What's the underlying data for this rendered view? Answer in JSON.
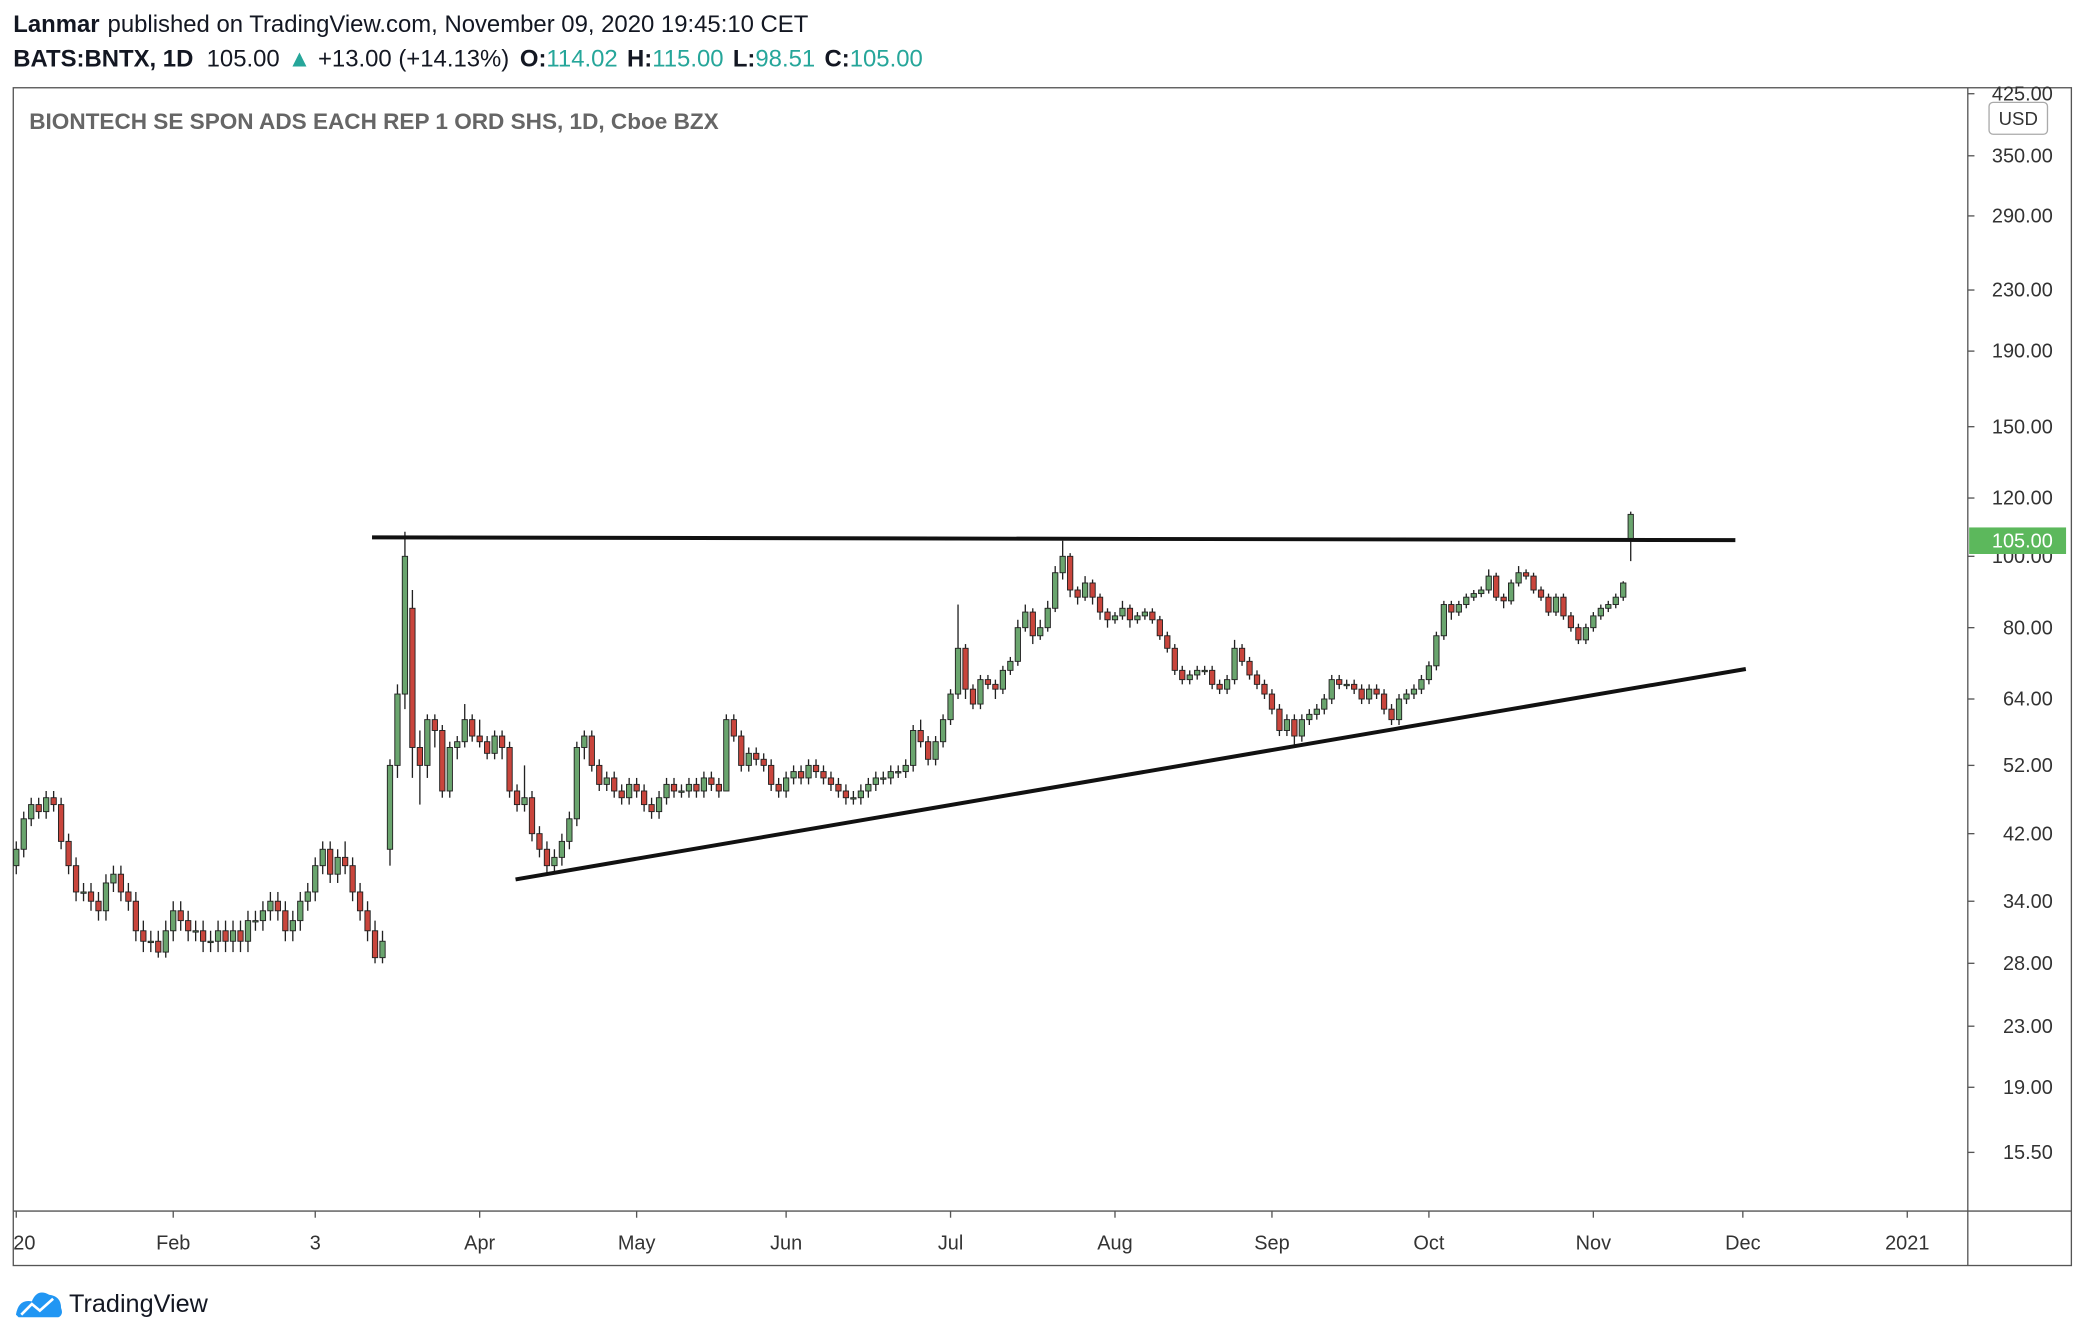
{
  "header": {
    "author": "Lanmar",
    "published": "published on TradingView.com, November 09, 2020 19:45:10 CET",
    "symbol": "BATS:BNTX, 1D",
    "price": "105.00",
    "arrow": "▲",
    "change": "+13.00 (+14.13%)",
    "ohlc_labels": [
      "O:",
      "H:",
      "L:",
      "C:"
    ],
    "ohlc_values": [
      "114.02",
      "115.00",
      "98.51",
      "105.00"
    ]
  },
  "chart_data": {
    "type": "candlestick",
    "title": "BIONTECH SE SPON ADS EACH REP 1 ORD SHS, 1D, Cboe BZX",
    "currency": "USD",
    "log_scale": true,
    "up_color": "#6aa56e",
    "down_color": "#c9453c",
    "last_price_label": "105.00",
    "last_price_color": "#5cb85c",
    "xlim": [
      -0.4,
      261.1
    ],
    "ylim": [
      12.9,
      433
    ],
    "xticks": [
      {
        "value": 0,
        "label": "20"
      },
      {
        "value": 21,
        "label": "Feb"
      },
      {
        "value": 40,
        "label": "3"
      },
      {
        "value": 62,
        "label": "Apr"
      },
      {
        "value": 83,
        "label": "May"
      },
      {
        "value": 103,
        "label": "Jun"
      },
      {
        "value": 125,
        "label": "Jul"
      },
      {
        "value": 147,
        "label": "Aug"
      },
      {
        "value": 168,
        "label": "Sep"
      },
      {
        "value": 189,
        "label": "Oct"
      },
      {
        "value": 211,
        "label": "Nov"
      },
      {
        "value": 231,
        "label": "Dec"
      },
      {
        "value": 253,
        "label": "2021"
      }
    ],
    "yticks": [
      {
        "value": 425,
        "label": "425.00"
      },
      {
        "value": 350,
        "label": "350.00"
      },
      {
        "value": 290,
        "label": "290.00"
      },
      {
        "value": 230,
        "label": "230.00"
      },
      {
        "value": 190,
        "label": "190.00"
      },
      {
        "value": 150,
        "label": "150.00"
      },
      {
        "value": 120,
        "label": "120.00"
      },
      {
        "value": 100,
        "label": "100.00"
      },
      {
        "value": 80,
        "label": "80.00"
      },
      {
        "value": 64,
        "label": "64.00"
      },
      {
        "value": 52,
        "label": "52.00"
      },
      {
        "value": 42,
        "label": "42.00"
      },
      {
        "value": 34,
        "label": "34.00"
      },
      {
        "value": 28,
        "label": "28.00"
      },
      {
        "value": 23,
        "label": "23.00"
      },
      {
        "value": 19,
        "label": "19.00"
      },
      {
        "value": 15.5,
        "label": "15.50"
      }
    ],
    "trendlines": [
      {
        "x": [
          47.6,
          230
        ],
        "y": [
          106.1,
          105.2
        ]
      },
      {
        "x": [
          66.8,
          231.4
        ],
        "y": [
          36.4,
          70.3
        ]
      }
    ],
    "ohlc": [
      [
        38,
        41,
        37,
        40
      ],
      [
        40,
        45,
        39,
        44
      ],
      [
        44,
        47,
        43,
        46
      ],
      [
        46,
        47,
        44,
        45
      ],
      [
        45,
        48,
        44,
        47
      ],
      [
        47,
        48,
        45,
        46
      ],
      [
        46,
        47,
        40,
        41
      ],
      [
        41,
        42,
        37,
        38
      ],
      [
        38,
        39,
        34,
        35
      ],
      [
        35,
        36,
        34,
        35
      ],
      [
        35,
        36,
        33,
        34
      ],
      [
        34,
        35,
        32,
        33
      ],
      [
        33,
        37,
        32,
        36
      ],
      [
        36,
        38,
        35,
        37
      ],
      [
        37,
        38,
        34,
        35
      ],
      [
        35,
        36,
        33,
        34
      ],
      [
        34,
        35,
        30,
        31
      ],
      [
        31,
        32,
        29,
        30
      ],
      [
        30,
        31,
        29,
        30
      ],
      [
        30,
        31,
        28.5,
        29
      ],
      [
        29,
        32,
        28.5,
        31
      ],
      [
        31,
        34,
        30,
        33
      ],
      [
        33,
        34,
        31,
        32
      ],
      [
        32,
        33,
        30,
        31
      ],
      [
        31,
        32,
        30,
        31
      ],
      [
        31,
        32,
        29,
        30
      ],
      [
        30,
        31,
        29,
        30
      ],
      [
        30,
        32,
        29,
        31
      ],
      [
        31,
        32,
        29,
        30
      ],
      [
        30,
        32,
        29,
        31
      ],
      [
        31,
        32,
        29,
        30
      ],
      [
        30,
        33,
        29,
        32
      ],
      [
        32,
        33,
        31,
        32
      ],
      [
        32,
        34,
        31,
        33
      ],
      [
        33,
        35,
        32,
        34
      ],
      [
        34,
        35,
        32,
        33
      ],
      [
        33,
        34,
        30,
        31
      ],
      [
        31,
        33,
        30,
        32
      ],
      [
        32,
        35,
        31,
        34
      ],
      [
        34,
        36,
        33,
        35
      ],
      [
        35,
        39,
        34,
        38
      ],
      [
        38,
        41,
        37,
        40
      ],
      [
        40,
        41,
        36,
        37
      ],
      [
        37,
        40,
        36,
        39
      ],
      [
        39,
        41,
        37,
        38
      ],
      [
        38,
        39,
        34,
        35
      ],
      [
        35,
        36,
        32,
        33
      ],
      [
        33,
        34,
        30,
        31
      ],
      [
        31,
        32,
        28,
        28.5
      ],
      [
        28.5,
        31,
        28,
        30
      ],
      [
        40,
        53,
        38,
        52
      ],
      [
        52,
        67,
        50,
        65
      ],
      [
        65,
        108,
        62,
        100
      ],
      [
        85,
        90,
        50,
        55
      ],
      [
        55,
        58,
        46,
        52
      ],
      [
        52,
        61,
        50,
        60
      ],
      [
        60,
        61,
        55,
        58
      ],
      [
        58,
        59,
        47,
        48
      ],
      [
        48,
        56,
        47,
        55
      ],
      [
        55,
        57,
        53,
        56
      ],
      [
        56,
        63,
        55,
        60
      ],
      [
        60,
        61,
        56,
        57
      ],
      [
        57,
        60,
        55,
        56
      ],
      [
        56,
        57,
        53,
        54
      ],
      [
        54,
        58,
        53,
        57
      ],
      [
        57,
        58,
        53,
        55
      ],
      [
        55,
        56,
        47,
        48
      ],
      [
        48,
        49,
        45,
        46
      ],
      [
        46,
        52,
        45,
        47
      ],
      [
        47,
        48,
        41,
        42
      ],
      [
        42,
        43,
        39,
        40
      ],
      [
        40,
        41,
        37,
        38
      ],
      [
        38,
        40,
        37,
        39
      ],
      [
        39,
        42,
        38,
        41
      ],
      [
        41,
        45,
        40,
        44
      ],
      [
        44,
        56,
        43,
        55
      ],
      [
        55,
        58,
        53,
        57
      ],
      [
        57,
        58,
        51,
        52
      ],
      [
        52,
        53,
        48,
        49
      ],
      [
        49,
        51,
        48,
        50
      ],
      [
        50,
        51,
        47,
        48
      ],
      [
        48,
        49,
        46,
        47
      ],
      [
        47,
        50,
        46,
        49
      ],
      [
        49,
        50,
        47,
        48
      ],
      [
        48,
        49,
        45,
        46
      ],
      [
        46,
        47,
        44,
        45
      ],
      [
        45,
        48,
        44,
        47
      ],
      [
        47,
        50,
        46,
        49
      ],
      [
        49,
        50,
        47,
        48
      ],
      [
        48,
        49,
        47,
        48
      ],
      [
        48,
        50,
        47,
        49
      ],
      [
        49,
        50,
        47,
        48
      ],
      [
        48,
        51,
        47,
        50
      ],
      [
        50,
        51,
        48,
        49
      ],
      [
        49,
        50,
        47,
        48
      ],
      [
        48,
        61,
        48,
        60
      ],
      [
        60,
        61,
        56,
        57
      ],
      [
        57,
        58,
        51,
        52
      ],
      [
        52,
        55,
        51,
        54
      ],
      [
        54,
        55,
        52,
        53
      ],
      [
        53,
        54,
        51,
        52
      ],
      [
        52,
        53,
        48,
        49
      ],
      [
        49,
        50,
        47,
        48
      ],
      [
        48,
        51,
        47,
        50
      ],
      [
        50,
        52,
        49,
        51
      ],
      [
        51,
        52,
        49,
        50
      ],
      [
        50,
        53,
        49,
        52
      ],
      [
        52,
        53,
        50,
        51
      ],
      [
        51,
        52,
        49,
        50
      ],
      [
        50,
        51,
        48,
        49
      ],
      [
        49,
        50,
        47,
        48
      ],
      [
        48,
        49,
        46,
        47
      ],
      [
        47,
        48,
        46,
        47
      ],
      [
        47,
        49,
        46,
        48
      ],
      [
        48,
        50,
        47,
        49
      ],
      [
        49,
        51,
        48,
        50
      ],
      [
        50,
        51,
        49,
        50
      ],
      [
        50,
        52,
        49,
        51
      ],
      [
        51,
        52,
        50,
        51
      ],
      [
        51,
        53,
        50,
        52
      ],
      [
        52,
        59,
        51,
        58
      ],
      [
        58,
        60,
        55,
        56
      ],
      [
        56,
        57,
        52,
        53
      ],
      [
        53,
        57,
        52,
        56
      ],
      [
        56,
        61,
        55,
        60
      ],
      [
        60,
        66,
        59,
        65
      ],
      [
        65,
        86,
        64,
        75
      ],
      [
        75,
        76,
        64,
        66
      ],
      [
        66,
        67,
        62,
        63
      ],
      [
        63,
        69,
        62,
        68
      ],
      [
        68,
        69,
        66,
        67
      ],
      [
        67,
        68,
        64,
        66
      ],
      [
        66,
        71,
        65,
        70
      ],
      [
        70,
        73,
        69,
        72
      ],
      [
        72,
        82,
        71,
        80
      ],
      [
        80,
        86,
        79,
        84
      ],
      [
        84,
        85,
        76,
        78
      ],
      [
        78,
        82,
        77,
        80
      ],
      [
        80,
        87,
        79,
        85
      ],
      [
        85,
        97,
        84,
        95
      ],
      [
        95,
        105,
        93,
        100
      ],
      [
        100,
        101,
        88,
        90
      ],
      [
        90,
        91,
        86,
        88
      ],
      [
        88,
        94,
        87,
        92
      ],
      [
        92,
        93,
        86,
        88
      ],
      [
        88,
        89,
        82,
        84
      ],
      [
        84,
        85,
        80,
        82
      ],
      [
        82,
        84,
        81,
        83
      ],
      [
        83,
        87,
        82,
        85
      ],
      [
        85,
        86,
        80,
        82
      ],
      [
        82,
        84,
        81,
        83
      ],
      [
        83,
        85,
        82,
        84
      ],
      [
        84,
        85,
        81,
        82
      ],
      [
        82,
        83,
        77,
        78
      ],
      [
        78,
        79,
        74,
        75
      ],
      [
        75,
        76,
        69,
        70
      ],
      [
        70,
        71,
        67,
        68
      ],
      [
        68,
        70,
        67,
        69
      ],
      [
        69,
        71,
        68,
        70
      ],
      [
        70,
        71,
        69,
        70
      ],
      [
        70,
        71,
        66,
        67
      ],
      [
        67,
        68,
        65,
        66
      ],
      [
        66,
        69,
        65,
        68
      ],
      [
        68,
        77,
        67,
        75
      ],
      [
        75,
        76,
        71,
        72
      ],
      [
        72,
        73,
        68,
        69
      ],
      [
        69,
        70,
        66,
        67
      ],
      [
        67,
        68,
        64,
        65
      ],
      [
        65,
        66,
        61,
        62
      ],
      [
        62,
        63,
        57,
        58
      ],
      [
        58,
        61,
        57,
        60
      ],
      [
        60,
        61,
        55,
        57
      ],
      [
        57,
        61,
        56,
        60
      ],
      [
        60,
        62,
        59,
        61
      ],
      [
        61,
        63,
        60,
        62
      ],
      [
        62,
        65,
        61,
        64
      ],
      [
        64,
        69,
        63,
        68
      ],
      [
        68,
        69,
        66,
        67
      ],
      [
        67,
        68,
        66,
        67
      ],
      [
        67,
        68,
        65,
        66
      ],
      [
        66,
        67,
        63,
        64
      ],
      [
        64,
        67,
        63,
        66
      ],
      [
        66,
        67,
        64,
        65
      ],
      [
        65,
        66,
        61,
        62
      ],
      [
        62,
        63,
        59,
        60
      ],
      [
        60,
        65,
        59,
        64
      ],
      [
        64,
        66,
        63,
        65
      ],
      [
        65,
        67,
        64,
        66
      ],
      [
        66,
        69,
        65,
        68
      ],
      [
        68,
        72,
        67,
        71
      ],
      [
        71,
        79,
        70,
        78
      ],
      [
        78,
        87,
        77,
        86
      ],
      [
        86,
        87,
        82,
        84
      ],
      [
        84,
        87,
        83,
        86
      ],
      [
        86,
        89,
        85,
        88
      ],
      [
        88,
        90,
        87,
        89
      ],
      [
        89,
        91,
        88,
        90
      ],
      [
        90,
        96,
        89,
        94
      ],
      [
        94,
        95,
        87,
        88
      ],
      [
        88,
        89,
        85,
        87
      ],
      [
        87,
        93,
        86,
        92
      ],
      [
        92,
        97,
        91,
        95
      ],
      [
        95,
        96,
        93,
        94
      ],
      [
        94,
        95,
        89,
        90
      ],
      [
        90,
        91,
        87,
        88
      ],
      [
        88,
        89,
        83,
        84
      ],
      [
        84,
        89,
        83,
        88
      ],
      [
        88,
        89,
        82,
        83
      ],
      [
        83,
        84,
        79,
        80
      ],
      [
        80,
        81,
        76,
        77
      ],
      [
        77,
        81,
        76,
        80
      ],
      [
        80,
        84,
        79,
        83
      ],
      [
        83,
        86,
        82,
        85
      ],
      [
        85,
        87,
        84,
        86
      ],
      [
        86,
        89,
        85,
        88
      ],
      [
        88,
        92.5,
        87,
        92
      ],
      [
        114.02,
        115,
        98.51,
        105
      ]
    ]
  },
  "footer": {
    "brand": "TradingView"
  }
}
